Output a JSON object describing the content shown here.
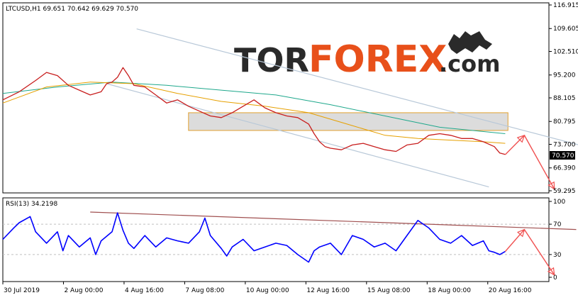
{
  "chart_data": [
    {
      "type": "line",
      "panel": "price",
      "title": "LTCUSD,H1  69.651 70.642 69.629 70.570",
      "current_price_label": "70.570",
      "ylim": [
        59.295,
        116.915
      ],
      "y_ticks": [
        116.915,
        109.605,
        102.51,
        95.2,
        88.105,
        80.795,
        73.7,
        66.39,
        59.295
      ],
      "y_tick_labels": [
        "116.915",
        "109.605",
        "102.510",
        "95.200",
        "88.105",
        "80.795",
        "73.700",
        "66.390",
        "59.295"
      ],
      "x_tick_labels": [
        "30 Jul 2019",
        "2 Aug 00:00",
        "4 Aug 16:00",
        "7 Aug 08:00",
        "10 Aug 00:00",
        "12 Aug 16:00",
        "15 Aug 08:00",
        "18 Aug 00:00",
        "20 Aug 16:00"
      ],
      "x_domain": [
        0,
        100
      ],
      "x_tick_positions": [
        0,
        11.1,
        22.2,
        33.3,
        44.4,
        55.5,
        66.6,
        77.7,
        88.8
      ],
      "series": [
        {
          "color": "#c81e1e",
          "x": [
            0,
            3,
            6,
            8,
            10,
            12,
            14,
            16,
            18,
            19,
            20,
            21,
            22,
            23,
            24,
            26,
            28,
            30,
            32,
            34,
            36,
            38,
            40,
            42,
            44,
            46,
            48,
            50,
            52,
            54,
            55,
            56,
            57,
            58,
            59,
            60,
            62,
            64,
            66,
            68,
            70,
            72,
            74,
            76,
            78,
            80,
            82,
            84,
            86,
            88,
            90,
            91,
            92
          ],
          "values": [
            87.5,
            90.0,
            93.5,
            96.0,
            95.0,
            92.0,
            90.5,
            89.0,
            90.0,
            92.5,
            93.0,
            94.5,
            97.5,
            95.0,
            92.0,
            91.5,
            89.0,
            86.5,
            87.5,
            85.5,
            84.0,
            82.5,
            82.0,
            83.5,
            85.5,
            87.5,
            85.0,
            83.5,
            82.5,
            82.0,
            81.0,
            80.0,
            77.0,
            74.5,
            73.0,
            72.5,
            72.0,
            73.5,
            74.0,
            73.0,
            72.0,
            71.5,
            73.5,
            74.0,
            76.5,
            77.0,
            76.5,
            75.5,
            75.5,
            74.5,
            73.0,
            71.0,
            70.57
          ]
        },
        {
          "color": "#e6a000",
          "x": [
            0,
            8,
            16,
            24,
            32,
            40,
            48,
            56,
            64,
            70,
            76,
            82,
            88,
            92
          ],
          "values": [
            86.5,
            91.5,
            93.0,
            92.5,
            89.5,
            87.0,
            85.5,
            83.5,
            79.5,
            76.5,
            75.5,
            75.0,
            74.5,
            74.0
          ]
        },
        {
          "color": "#1fa88c",
          "x": [
            0,
            10,
            20,
            30,
            40,
            50,
            60,
            70,
            80,
            92
          ],
          "values": [
            89.5,
            91.5,
            93.0,
            92.0,
            90.5,
            89.0,
            86.0,
            82.5,
            79.0,
            77.0
          ]
        }
      ],
      "channel_lines": [
        {
          "x": [
            24.5,
            105.5
          ],
          "values": [
            109.5,
            73.5
          ]
        },
        {
          "x": [
            19,
            89
          ],
          "values": [
            92.5,
            60.5
          ]
        }
      ],
      "zone": {
        "x_range": [
          34,
          92.5
        ],
        "y_range": [
          78.0,
          83.5
        ]
      },
      "forecast_arrows": [
        {
          "x": [
            92,
            95.5
          ],
          "values": [
            70.5,
            76.5
          ]
        },
        {
          "x": [
            95.5,
            101
          ],
          "values": [
            76.5,
            59.8
          ]
        }
      ]
    },
    {
      "type": "line",
      "panel": "indicator",
      "title": "RSI(13) 34.2198",
      "ylim": [
        0,
        100
      ],
      "y_ticks": [
        100,
        70,
        30,
        0
      ],
      "y_tick_labels": [
        "100",
        "70",
        "30",
        "0"
      ],
      "levels": [
        70,
        30
      ],
      "series": [
        {
          "color": "#0000ff",
          "x": [
            0,
            2,
            3,
            5,
            6,
            8,
            10,
            11,
            12,
            14,
            16,
            17,
            18,
            20,
            21,
            22,
            23,
            24,
            26,
            28,
            30,
            32,
            34,
            36,
            37,
            38,
            40,
            41,
            42,
            44,
            46,
            48,
            50,
            52,
            54,
            56,
            57,
            58,
            60,
            62,
            64,
            66,
            68,
            70,
            72,
            74,
            76,
            77,
            78,
            80,
            82,
            84,
            86,
            88,
            89,
            90,
            91,
            92
          ],
          "values": [
            50,
            65,
            72,
            80,
            60,
            45,
            60,
            35,
            55,
            40,
            52,
            30,
            48,
            60,
            85,
            62,
            45,
            38,
            55,
            40,
            52,
            48,
            45,
            60,
            78,
            55,
            38,
            28,
            40,
            50,
            35,
            40,
            45,
            42,
            30,
            20,
            35,
            40,
            45,
            30,
            55,
            50,
            40,
            45,
            35,
            55,
            75,
            70,
            65,
            50,
            45,
            55,
            42,
            48,
            35,
            33,
            30,
            34
          ]
        }
      ],
      "trend_line": {
        "x": [
          16,
          105
        ],
        "values": [
          86,
          63
        ]
      },
      "forecast_arrows": [
        {
          "x": [
            92,
            95.5
          ],
          "values": [
            34,
            63
          ]
        },
        {
          "x": [
            95.5,
            101
          ],
          "values": [
            63,
            3
          ]
        }
      ]
    }
  ],
  "watermark": {
    "tor": "TOR",
    "forex": "FOREX",
    "com": ".com"
  },
  "colors": {
    "grid_frame": "#000000",
    "tick_text": "#000000",
    "price_line": "#c81e1e",
    "ma_fast": "#e6a000",
    "ma_slow": "#1fa88c",
    "channel": "#b8c8d8",
    "zone_fill": "#dcdcdc",
    "zone_border": "#e0a030",
    "arrow": "#f05050",
    "rsi_line": "#0000ff",
    "rsi_trend": "#a05050",
    "level_line": "#c0c0c0",
    "logo_dark": "#2a2a2a",
    "logo_accent": "#e8501a"
  }
}
